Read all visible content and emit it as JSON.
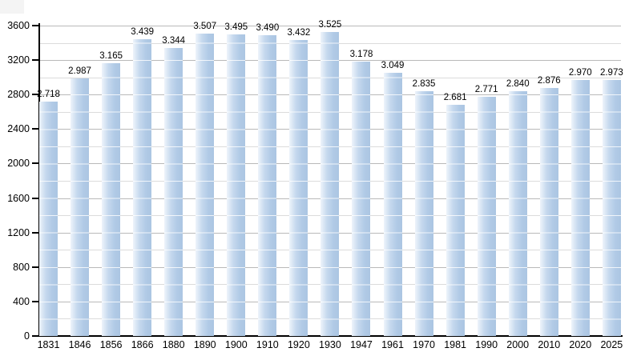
{
  "chart_data": {
    "type": "bar",
    "title": "",
    "xlabel": "",
    "ylabel": "",
    "categories": [
      "1831",
      "1846",
      "1856",
      "1866",
      "1880",
      "1890",
      "1900",
      "1910",
      "1920",
      "1930",
      "1947",
      "1961",
      "1970",
      "1981",
      "1990",
      "2000",
      "2010",
      "2020",
      "2025"
    ],
    "values": [
      2718,
      2987,
      3165,
      3439,
      3344,
      3507,
      3495,
      3490,
      3432,
      3525,
      3178,
      3049,
      2835,
      2681,
      2771,
      2840,
      2876,
      2970,
      2973
    ],
    "value_labels": [
      "2.718",
      "2.987",
      "3.165",
      "3.439",
      "3.344",
      "3.507",
      "3.495",
      "3.490",
      "3.432",
      "3.525",
      "3.178",
      "3.049",
      "2.835",
      "2.681",
      "2.771",
      "2.840",
      "2.876",
      "2.970",
      "2.973"
    ],
    "ylim": [
      0,
      3600
    ],
    "y_major_interval": 400,
    "y_minor_interval": 200,
    "y_tick_labels": [
      "3600",
      "3200",
      "2800",
      "2400",
      "2000",
      "1600",
      "1200",
      "800",
      "400",
      "0"
    ],
    "grid": "on",
    "legend": "none",
    "colors": {
      "bar_main": "#b1cae6",
      "bar_light": "#eef4fb",
      "grid_major": "#b9b9b9",
      "grid_minor": "#dcdcdc",
      "axis": "#000000",
      "text": "#000000",
      "background": "#ffffff",
      "corner_artifact": "#f4f4f4"
    }
  }
}
